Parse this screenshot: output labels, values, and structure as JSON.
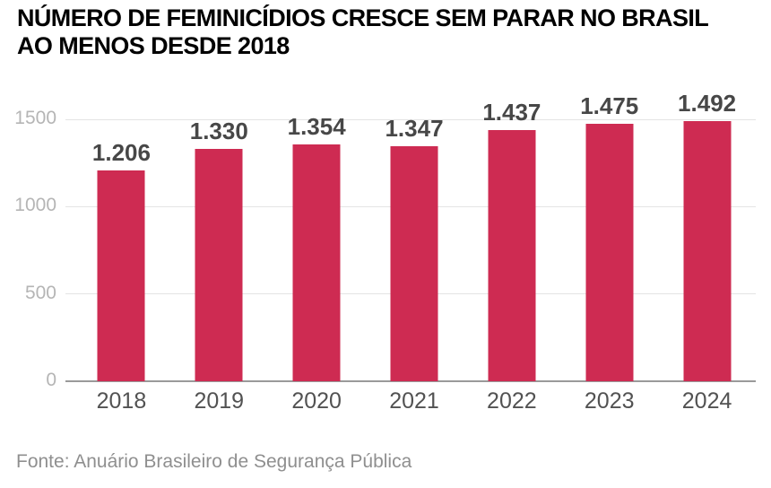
{
  "header": {
    "title_line1": "NÚMERO DE FEMINICÍDIOS CRESCE SEM PARAR NO BRASIL",
    "title_line2": "AO MENOS DESDE 2018"
  },
  "footer": {
    "source": "Fonte: Anuário Brasileiro de Segurança Pública"
  },
  "theme": {
    "bar_color": "#ce2b52",
    "title_color": "#000000",
    "value_label_color": "#474747",
    "y_axis_label_color": "#b5b5b5",
    "x_axis_label_color": "#525252",
    "gridline_color": "#e4e4e4",
    "baseline_color": "#9a9a9a",
    "source_color": "#8f8f8f",
    "background": "#ffffff"
  },
  "chart_data": {
    "type": "bar",
    "title": "NÚMERO DE FEMINICÍDIOS CRESCE SEM PARAR NO BRASIL AO MENOS DESDE 2018",
    "categories": [
      "2018",
      "2019",
      "2020",
      "2021",
      "2022",
      "2023",
      "2024"
    ],
    "values": [
      1206,
      1330,
      1354,
      1347,
      1437,
      1475,
      1492
    ],
    "value_labels": [
      "1.206",
      "1.330",
      "1.354",
      "1.347",
      "1.437",
      "1.475",
      "1.492"
    ],
    "xlabel": "",
    "ylabel": "",
    "ylim": [
      0,
      1500
    ],
    "yticks": [
      0,
      500,
      1000,
      1500
    ],
    "ytick_labels": [
      "0",
      "500",
      "1000",
      "1500"
    ],
    "grid": true,
    "legend": false,
    "source": "Fonte: Anuário Brasileiro de Segurança Pública"
  }
}
